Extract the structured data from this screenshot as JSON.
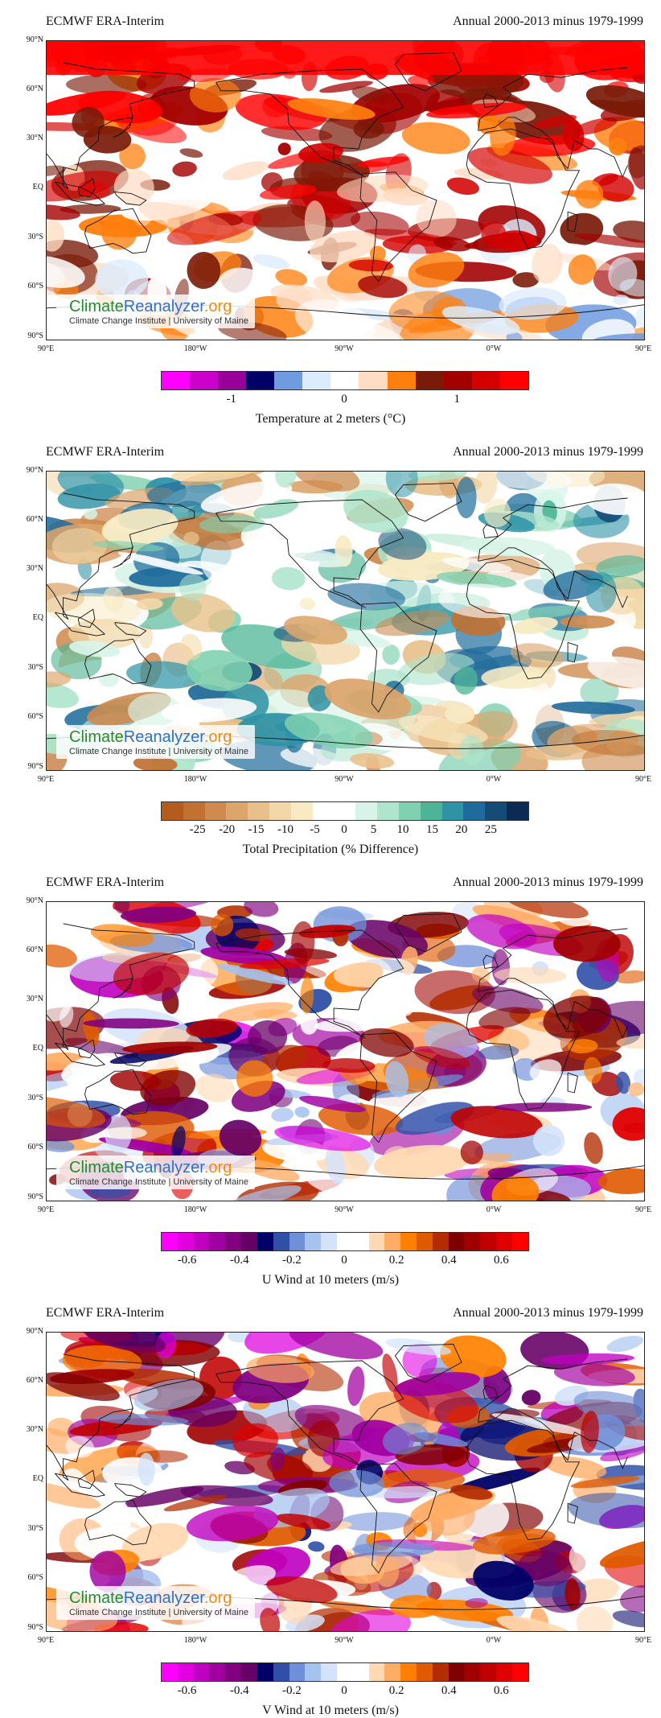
{
  "panels": [
    {
      "source": "ECMWF ERA-Interim",
      "period": "Annual 2000-2013 minus 1979-1999",
      "variable": "Temperature at 2 meters (°C)",
      "scale": "temperature",
      "colorbar": [
        "#ff00ff",
        "#cc00cc",
        "#990099",
        "#000066",
        "#6f9be0",
        "#dcecfc",
        "#ffffff",
        "#ffdcc3",
        "#ff7f0e",
        "#7a1a08",
        "#a30000",
        "#d40000",
        "#ff0000"
      ],
      "colorbar_ticks": [
        "-1",
        "0",
        "1"
      ],
      "colorbar_tick_values": [
        -1,
        0,
        1
      ],
      "colorbar_range": [
        -1.625,
        1.625
      ]
    },
    {
      "source": "ECMWF ERA-Interim",
      "period": "Annual 2000-2013 minus 1979-1999",
      "variable": "Total Precipitation (% Difference)",
      "scale": "precipitation",
      "colorbar": [
        "#b35c1b",
        "#c27133",
        "#cf8a4f",
        "#dca56c",
        "#e9c08b",
        "#f2d8a8",
        "#f8ebc4",
        "#ffffff",
        "#ffffff",
        "#d8f4e8",
        "#aee5cc",
        "#7fd1b1",
        "#4db596",
        "#2f93a6",
        "#1f6c9c",
        "#154b77",
        "#0b2b55"
      ],
      "colorbar_ticks": [
        "-25",
        "-20",
        "-15",
        "-10",
        "-5",
        "0",
        "5",
        "10",
        "15",
        "20",
        "25"
      ],
      "colorbar_tick_values": [
        -25,
        -20,
        -15,
        -10,
        -5,
        0,
        5,
        10,
        15,
        20,
        25
      ],
      "colorbar_range": [
        -31.25,
        31.25
      ]
    },
    {
      "source": "ECMWF ERA-Interim",
      "period": "Annual 2000-2013 minus 1979-1999",
      "variable": "U Wind at 10 meters (m/s)",
      "scale": "wind",
      "colorbar": [
        "#ff00ff",
        "#e000e0",
        "#c000c0",
        "#a000a0",
        "#800080",
        "#660066",
        "#000066",
        "#3050a8",
        "#6f8fd8",
        "#a6c2ef",
        "#d4e3fa",
        "#ffffff",
        "#ffffff",
        "#ffd9b3",
        "#ffad66",
        "#ff8000",
        "#e05a00",
        "#b32d00",
        "#800000",
        "#a00000",
        "#c00000",
        "#e00000",
        "#ff0000"
      ],
      "colorbar_ticks": [
        "-0.6",
        "-0.4",
        "-0.2",
        "0",
        "0.2",
        "0.4",
        "0.6"
      ],
      "colorbar_tick_values": [
        -0.6,
        -0.4,
        -0.2,
        0,
        0.2,
        0.4,
        0.6
      ],
      "colorbar_range": [
        -0.7,
        0.7
      ]
    },
    {
      "source": "ECMWF ERA-Interim",
      "period": "Annual 2000-2013 minus 1979-1999",
      "variable": "V Wind at 10 meters (m/s)",
      "scale": "wind",
      "colorbar": [
        "#ff00ff",
        "#e000e0",
        "#c000c0",
        "#a000a0",
        "#800080",
        "#660066",
        "#000066",
        "#3050a8",
        "#6f8fd8",
        "#a6c2ef",
        "#d4e3fa",
        "#ffffff",
        "#ffffff",
        "#ffd9b3",
        "#ffad66",
        "#ff8000",
        "#e05a00",
        "#b32d00",
        "#800000",
        "#a00000",
        "#c00000",
        "#e00000",
        "#ff0000"
      ],
      "colorbar_ticks": [
        "-0.6",
        "-0.4",
        "-0.2",
        "0",
        "0.2",
        "0.4",
        "0.6"
      ],
      "colorbar_tick_values": [
        -0.6,
        -0.4,
        -0.2,
        0,
        0.2,
        0.4,
        0.6
      ],
      "colorbar_range": [
        -0.7,
        0.7
      ]
    }
  ],
  "latitude_labels": [
    "90°N",
    "60°N",
    "30°N",
    "EQ",
    "30°S",
    "60°S",
    "90°S"
  ],
  "longitude_labels": [
    "90°E",
    "180°W",
    "90°W",
    "0°W",
    "90°E"
  ],
  "logo": {
    "part1": "Climate",
    "part2": "Reanalyzer",
    "part3": ".org",
    "subtitle": "Climate Change Institute | University of Maine"
  }
}
